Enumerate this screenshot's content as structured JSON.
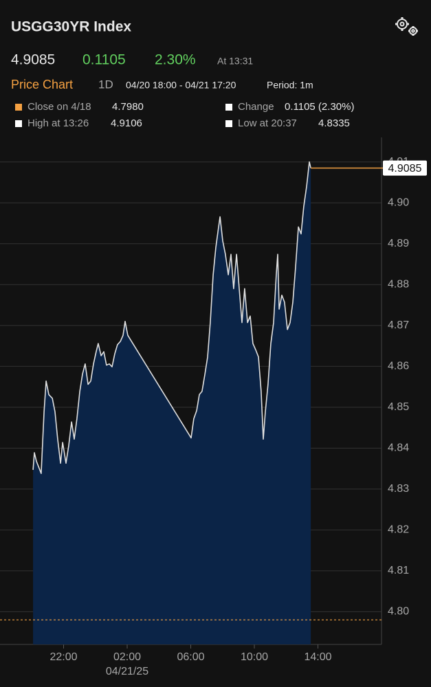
{
  "header": {
    "title": "USGG30YR Index",
    "price": "4.9085",
    "change": "0.1105",
    "change_pct": "2.30%",
    "time": "At 13:31",
    "chart_label": "Price Chart",
    "range": "1D",
    "period_span": "04/20 18:00 - 04/21 17:20",
    "period": "Period: 1m",
    "stats": [
      {
        "label": "Close on 4/18",
        "value": "4.7980"
      },
      {
        "label": "Change",
        "value": "0.1105 (2.30%)"
      },
      {
        "label": "High at 13:26",
        "value": "4.9106"
      },
      {
        "label": "Low at 20:37",
        "value": "4.8335"
      }
    ]
  },
  "chart_data": {
    "type": "area",
    "x": [
      20.08,
      20.16,
      20.29,
      20.42,
      20.59,
      20.77,
      20.9,
      21.07,
      21.29,
      21.46,
      21.63,
      21.81,
      21.94,
      22.15,
      22.32,
      22.5,
      22.67,
      22.84,
      23.02,
      23.19,
      23.36,
      23.54,
      23.71,
      23.88,
      24.05,
      24.18,
      24.36,
      24.53,
      24.7,
      24.88,
      25.05,
      25.22,
      25.39,
      25.57,
      25.74,
      25.87,
      26.04,
      30.02,
      30.19,
      30.37,
      30.54,
      30.71,
      30.89,
      31.06,
      31.23,
      31.41,
      31.58,
      31.75,
      31.84,
      32.01,
      32.18,
      32.36,
      32.53,
      32.7,
      32.88,
      33.05,
      33.22,
      33.39,
      33.57,
      33.74,
      33.91,
      34.09,
      34.26,
      34.43,
      34.56,
      34.69,
      34.86,
      35.04,
      35.21,
      35.38,
      35.47,
      35.56,
      35.73,
      35.9,
      36.08,
      36.25,
      36.42,
      36.59,
      36.77,
      36.94,
      37.11,
      37.29,
      37.46,
      37.55
    ],
    "series": [
      {
        "color": "#e0e0e0",
        "fill": "#0b2447",
        "values": [
          4.8347,
          4.8389,
          4.8368,
          4.8355,
          4.8338,
          4.8489,
          4.8564,
          4.8531,
          4.8522,
          4.8489,
          4.8422,
          4.8363,
          4.8414,
          4.8363,
          4.8405,
          4.8464,
          4.8422,
          4.8472,
          4.8539,
          4.8581,
          4.8606,
          4.8556,
          4.8564,
          4.8606,
          4.8636,
          4.8656,
          4.8626,
          4.8636,
          4.8603,
          4.8606,
          4.8599,
          4.8631,
          4.8653,
          4.8661,
          4.8676,
          4.871,
          4.8676,
          4.8425,
          4.8472,
          4.8492,
          4.8531,
          4.8539,
          4.8581,
          4.8623,
          4.8707,
          4.8824,
          4.8891,
          4.8941,
          4.8966,
          4.8907,
          4.8874,
          4.8824,
          4.8874,
          4.879,
          4.8874,
          4.879,
          4.8707,
          4.879,
          4.8707,
          4.8723,
          4.8656,
          4.864,
          4.8623,
          4.8539,
          4.8422,
          4.8489,
          4.8556,
          4.8656,
          4.8707,
          4.8824,
          4.8874,
          4.874,
          4.8774,
          4.8757,
          4.869,
          4.8707,
          4.8757,
          4.8841,
          4.8941,
          4.8924,
          4.8991,
          4.9041,
          4.91,
          4.9085
        ]
      }
    ],
    "reference_value": 4.798,
    "accent_color": "#f5a142",
    "xlim": [
      18,
      42
    ],
    "xticks": [
      {
        "value": 22,
        "label": "22:00"
      },
      {
        "value": 26,
        "label": "02:00"
      },
      {
        "value": 30,
        "label": "06:00"
      },
      {
        "value": 34,
        "label": "10:00"
      },
      {
        "value": 38,
        "label": "14:00"
      }
    ],
    "annotations": [
      {
        "text": "04/21/25",
        "x": 26
      }
    ],
    "ylim": [
      4.792,
      4.916
    ],
    "yticks": [
      {
        "value": 4.8,
        "label": "4.80"
      },
      4.81,
      4.82,
      4.83,
      4.84,
      4.85,
      4.86,
      4.87,
      4.88,
      4.89,
      {
        "value": 4.9,
        "label": "4.90"
      },
      4.91
    ],
    "grid": true
  }
}
